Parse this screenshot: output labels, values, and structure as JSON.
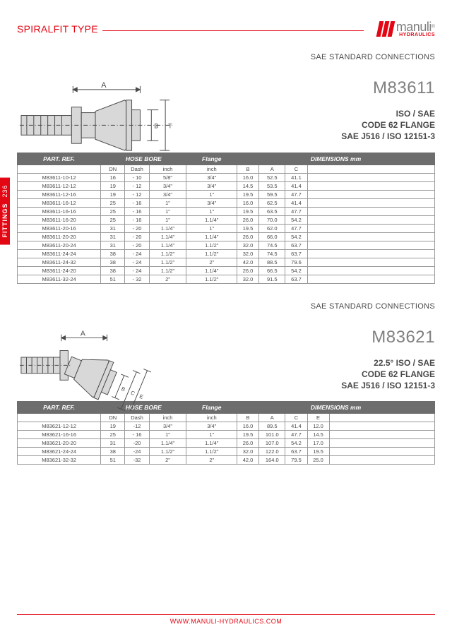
{
  "page": {
    "header_title": "SPIRALFIT TYPE",
    "side_tab_label": "FITTINGS",
    "side_tab_page": "236",
    "footer_url": "WWW.MANULI-HYDRAULICS.COM",
    "logo": {
      "text": "manuli",
      "reg": "®",
      "sub": "HYDRAULICS"
    }
  },
  "colors": {
    "accent": "#e30613",
    "header_bg": "#6d6d6d",
    "text_gray": "#808080",
    "body_text": "#4a4a4a",
    "border": "#999999"
  },
  "section1": {
    "connection_label": "SAE STANDARD CONNECTIONS",
    "model": "M83611",
    "spec_lines": [
      "ISO / SAE",
      "CODE 62 FLANGE",
      "SAE J516 / ISO 12151-3"
    ],
    "diagram": {
      "dim_labels": [
        "A",
        "B",
        "T"
      ],
      "shape_hint": "straight-flange"
    },
    "table": {
      "group_headers": [
        "PART. REF.",
        "HOSE BORE",
        "Flange",
        "DIMENSIONS mm"
      ],
      "sub_headers": [
        "",
        "DN",
        "Dash",
        "inch",
        "inch",
        "B",
        "A",
        "C"
      ],
      "rows": [
        [
          "M83611-10-12",
          "16",
          "- 10",
          "5/8\"",
          "3/4\"",
          "16.0",
          "52.5",
          "41.1"
        ],
        [
          "M83611-12-12",
          "19",
          "- 12",
          "3/4\"",
          "3/4\"",
          "14.5",
          "53.5",
          "41.4"
        ],
        [
          "M83611-12-16",
          "19",
          "- 12",
          "3/4\"",
          "1\"",
          "19.5",
          "59.5",
          "47.7"
        ],
        [
          "M83611-16-12",
          "25",
          "- 16",
          "1\"",
          "3/4\"",
          "16.0",
          "62.5",
          "41.4"
        ],
        [
          "M83611-16-16",
          "25",
          "- 16",
          "1\"",
          "1\"",
          "19.5",
          "63.5",
          "47.7"
        ],
        [
          "M83611-16-20",
          "25",
          "- 16",
          "1\"",
          "1.1/4\"",
          "26.0",
          "70.0",
          "54.2"
        ],
        [
          "M83611-20-16",
          "31",
          "- 20",
          "1.1/4\"",
          "1\"",
          "19.5",
          "62.0",
          "47.7"
        ],
        [
          "M83611-20-20",
          "31",
          "- 20",
          "1.1/4\"",
          "1.1/4\"",
          "26.0",
          "66.0",
          "54.2"
        ],
        [
          "M83611-20-24",
          "31",
          "- 20",
          "1.1/4\"",
          "1.1/2\"",
          "32.0",
          "74.5",
          "63.7"
        ],
        [
          "M83611-24-24",
          "38",
          "- 24",
          "1.1/2\"",
          "1.1/2\"",
          "32.0",
          "74.5",
          "63.7"
        ],
        [
          "M83611-24-32",
          "38",
          "- 24",
          "1.1/2\"",
          "2\"",
          "42.0",
          "88.5",
          "79.6"
        ],
        [
          "M83611-24-20",
          "38",
          "- 24",
          "1.1/2\"",
          "1.1/4\"",
          "26.0",
          "66.5",
          "54.2"
        ],
        [
          "M83611-32-24",
          "51",
          "- 32",
          "2\"",
          "1.1/2\"",
          "32.0",
          "91.5",
          "63.7"
        ]
      ]
    }
  },
  "section2": {
    "connection_label": "SAE STANDARD CONNECTIONS",
    "model": "M83621",
    "spec_lines": [
      "22.5° ISO / SAE",
      "CODE 62 FLANGE",
      "SAE J516 / ISO 12151-3"
    ],
    "diagram": {
      "dim_labels": [
        "A",
        "B",
        "C",
        "E"
      ],
      "shape_hint": "22deg-flange"
    },
    "table": {
      "group_headers": [
        "PART. REF.",
        "HOSE BORE",
        "Flange",
        "DIMENSIONS mm"
      ],
      "sub_headers": [
        "",
        "DN",
        "Dash",
        "inch",
        "inch",
        "B",
        "A",
        "C",
        "E"
      ],
      "rows": [
        [
          "M83621-12-12",
          "19",
          "-12",
          "3/4\"",
          "3/4\"",
          "16.0",
          "89.5",
          "41.4",
          "12.0"
        ],
        [
          "M83621-16-16",
          "25",
          "- 16",
          "1\"",
          "1\"",
          "19.5",
          "101.0",
          "47.7",
          "14.5"
        ],
        [
          "M83621-20-20",
          "31",
          "-20",
          "1.1/4\"",
          "1.1/4\"",
          "26.0",
          "107.0",
          "54.2",
          "17.0"
        ],
        [
          "M83621-24-24",
          "38",
          "-24",
          "1.1/2\"",
          "1.1/2\"",
          "32.0",
          "122.0",
          "63.7",
          "19.5"
        ],
        [
          "M83621-32-32",
          "51",
          "-32",
          "2\"",
          "2\"",
          "42.0",
          "164.0",
          "79.5",
          "25.0"
        ]
      ]
    }
  }
}
